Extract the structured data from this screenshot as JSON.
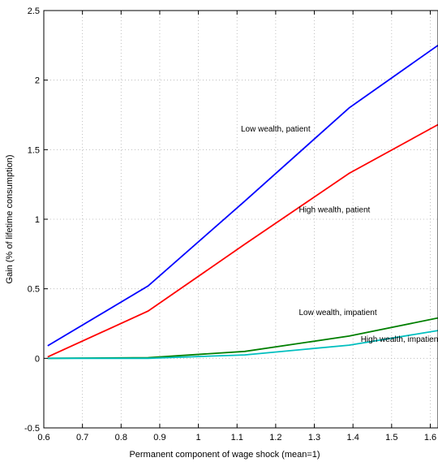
{
  "chart_data": {
    "type": "line",
    "title": "",
    "xlabel": "Permanent component of wage shock (mean=1)",
    "ylabel": "Gain (% of lifetime consumption)",
    "xlim": [
      0.6,
      1.62
    ],
    "ylim": [
      -0.5,
      2.5
    ],
    "xticks": [
      0.6,
      0.7,
      0.8,
      0.9,
      1,
      1.1,
      1.2,
      1.3,
      1.4,
      1.5,
      1.6
    ],
    "xtick_labels": [
      "0.6",
      "0.7",
      "0.8",
      "0.9",
      "1",
      "1.1",
      "1.2",
      "1.3",
      "1.4",
      "1.5",
      "1.6"
    ],
    "yticks": [
      -0.5,
      0,
      0.5,
      1,
      1.5,
      2,
      2.5
    ],
    "ytick_labels": [
      "-0.5",
      "0",
      "0.5",
      "1",
      "1.5",
      "2",
      "2.5"
    ],
    "grid": true,
    "legend": "none",
    "series": [
      {
        "name": "Low wealth, patient",
        "color": "#0000ff",
        "x": [
          0.61,
          0.87,
          1.12,
          1.39,
          1.62
        ],
        "y": [
          0.09,
          0.52,
          1.13,
          1.8,
          2.25
        ]
      },
      {
        "name": "High wealth, patient",
        "color": "#ff0000",
        "x": [
          0.61,
          0.87,
          1.12,
          1.39,
          1.62
        ],
        "y": [
          0.01,
          0.34,
          0.82,
          1.33,
          1.68
        ]
      },
      {
        "name": "Low wealth, impatient",
        "color": "#007f00",
        "x": [
          0.61,
          0.87,
          1.12,
          1.39,
          1.62
        ],
        "y": [
          0.0,
          0.005,
          0.05,
          0.16,
          0.29
        ]
      },
      {
        "name": "High wealth, impatient",
        "color": "#00bfbf",
        "x": [
          0.61,
          0.87,
          1.12,
          1.39,
          1.62
        ],
        "y": [
          0.0,
          0.0,
          0.025,
          0.095,
          0.2
        ]
      }
    ],
    "annotations": [
      {
        "text": "Low wealth, patient",
        "x": 1.11,
        "y": 1.63
      },
      {
        "text": "High wealth, patient",
        "x": 1.26,
        "y": 1.05
      },
      {
        "text": "Low wealth, impatient",
        "x": 1.26,
        "y": 0.31
      },
      {
        "text": "High wealth, impatient",
        "x": 1.42,
        "y": 0.12
      }
    ]
  }
}
